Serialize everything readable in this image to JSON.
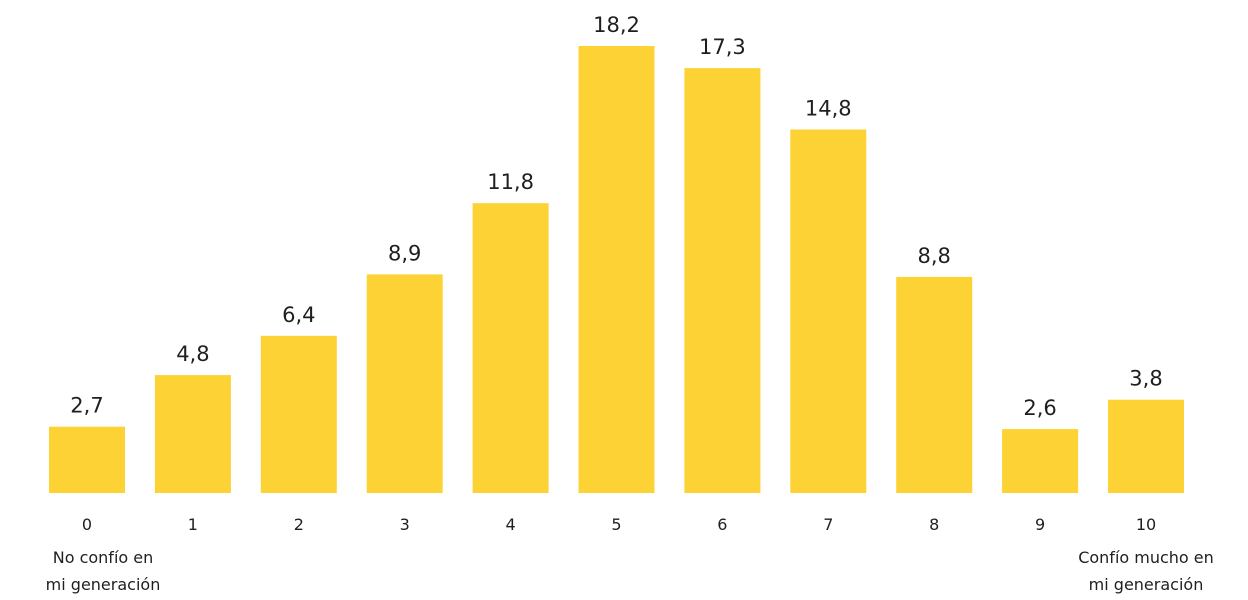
{
  "chart_data": {
    "type": "bar",
    "categories": [
      "0",
      "1",
      "2",
      "3",
      "4",
      "5",
      "6",
      "7",
      "8",
      "9",
      "10"
    ],
    "values": [
      2.7,
      4.8,
      6.4,
      8.9,
      11.8,
      18.2,
      17.3,
      14.8,
      8.8,
      2.6,
      3.8
    ],
    "value_labels": [
      "2,7",
      "4,8",
      "6,4",
      "8,9",
      "11,8",
      "18,2",
      "17,3",
      "14,8",
      "8,8",
      "2,6",
      "3,8"
    ],
    "ylim": [
      0,
      18.2
    ],
    "grid": false,
    "bar_color": "#FDD235"
  },
  "annotations": {
    "left_label_line1": "No confío en",
    "left_label_line2": "mi generación",
    "right_label_line1": "Confío mucho en",
    "right_label_line2": "mi generación"
  }
}
